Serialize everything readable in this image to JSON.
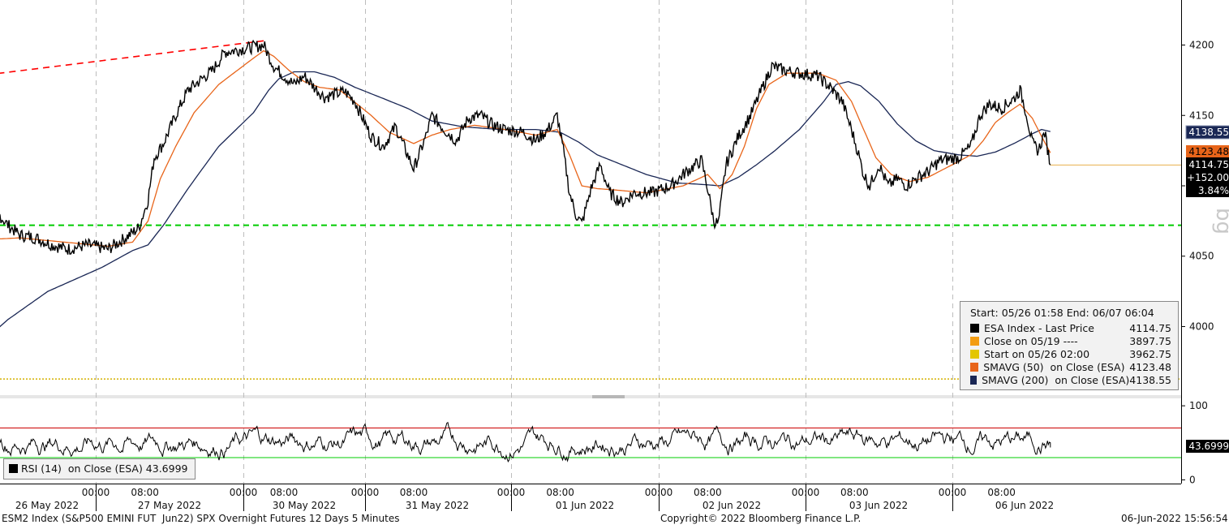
{
  "chart_data": [
    {
      "type": "line",
      "y_ticks": [
        4000,
        4050,
        4100,
        4150,
        4200
      ],
      "y_tick_labels": [
        "4000",
        "4050",
        "",
        "4150",
        "4200"
      ],
      "ylim": [
        3953,
        4232
      ],
      "x_axis": {
        "day_labels": [
          "26 May 2022",
          "27 May 2022",
          "30 May 2022",
          "31 May 2022",
          "01 Jun 2022",
          "02 Jun 2022",
          "03 Jun 2022",
          "06 Jun 2022"
        ],
        "hour_labels": [
          "08:00",
          "00:00",
          "08:00",
          "00:00",
          "08:00",
          "00:00",
          "08:00",
          "00:00",
          "08:00",
          "00:00",
          "08:00",
          "00:00",
          "08:00",
          "00:00",
          "08:00"
        ],
        "day_boundaries": [
          "27 May 2022 00:00",
          "30 May 2022 00:00",
          "31 May 2022 00:00",
          "01 Jun 2022 00:00",
          "02 Jun 2022 00:00",
          "03 Jun 2022 00:00",
          "06 Jun 2022 00:00"
        ]
      },
      "price_path": [
        [
          "05/26 01:58",
          3962
        ],
        [
          "05/26 04:00",
          3985
        ],
        [
          "05/26 06:00",
          4000
        ],
        [
          "05/26 07:30",
          4020
        ],
        [
          "05/26 08:30",
          4050
        ],
        [
          "05/26 10:00",
          4075
        ],
        [
          "05/26 11:30",
          4082
        ],
        [
          "05/26 13:00",
          4072
        ],
        [
          "05/26 14:30",
          4065
        ],
        [
          "05/26 16:30",
          4063
        ],
        [
          "05/26 18:30",
          4058
        ],
        [
          "05/26 20:30",
          4055
        ],
        [
          "05/26 23:00",
          4058
        ],
        [
          "05/27 02:00",
          4055
        ],
        [
          "05/27 04:30",
          4062
        ],
        [
          "05/27 07:00",
          4070
        ],
        [
          "05/27 08:30",
          4090
        ],
        [
          "05/27 09:30",
          4120
        ],
        [
          "05/27 11:00",
          4130
        ],
        [
          "05/27 13:00",
          4150
        ],
        [
          "05/27 15:00",
          4168
        ],
        [
          "05/27 17:00",
          4175
        ],
        [
          "05/27 19:00",
          4182
        ],
        [
          "05/27 21:00",
          4195
        ],
        [
          "05/30 01:00",
          4198
        ],
        [
          "05/30 04:00",
          4200
        ],
        [
          "05/30 06:00",
          4185
        ],
        [
          "05/30 08:00",
          4178
        ],
        [
          "05/30 10:00",
          4172
        ],
        [
          "05/30 12:00",
          4178
        ],
        [
          "05/30 14:00",
          4170
        ],
        [
          "05/30 16:00",
          4163
        ],
        [
          "05/30 18:00",
          4165
        ],
        [
          "05/30 20:00",
          4167
        ],
        [
          "05/30 22:00",
          4160
        ],
        [
          "05/31 01:00",
          4135
        ],
        [
          "05/31 03:00",
          4128
        ],
        [
          "05/31 05:00",
          4142
        ],
        [
          "05/31 07:00",
          4122
        ],
        [
          "05/31 08:00",
          4112
        ],
        [
          "05/31 10:00",
          4135
        ],
        [
          "05/31 11:00",
          4150
        ],
        [
          "05/31 13:00",
          4140
        ],
        [
          "05/31 15:00",
          4132
        ],
        [
          "05/31 17:00",
          4148
        ],
        [
          "05/31 19:00",
          4150
        ],
        [
          "05/31 21:00",
          4143
        ],
        [
          "05/31 23:00",
          4140
        ],
        [
          "06/01 02:00",
          4138
        ],
        [
          "06/01 04:00",
          4132
        ],
        [
          "06/01 06:00",
          4140
        ],
        [
          "06/01 07:30",
          4150
        ],
        [
          "06/01 08:30",
          4125
        ],
        [
          "06/01 09:30",
          4095
        ],
        [
          "06/01 10:30",
          4080
        ],
        [
          "06/01 11:30",
          4073
        ],
        [
          "06/01 13:00",
          4098
        ],
        [
          "06/01 14:30",
          4115
        ],
        [
          "06/01 16:00",
          4095
        ],
        [
          "06/01 18:00",
          4088
        ],
        [
          "06/01 20:00",
          4095
        ],
        [
          "06/01 23:00",
          4095
        ],
        [
          "06/02 02:00",
          4100
        ],
        [
          "06/02 04:30",
          4110
        ],
        [
          "06/02 07:00",
          4118
        ],
        [
          "06/02 08:00",
          4098
        ],
        [
          "06/02 09:00",
          4075
        ],
        [
          "06/02 09:45",
          4073
        ],
        [
          "06/02 11:00",
          4115
        ],
        [
          "06/02 13:00",
          4135
        ],
        [
          "06/02 15:00",
          4150
        ],
        [
          "06/02 16:30",
          4165
        ],
        [
          "06/02 18:30",
          4185
        ],
        [
          "06/02 20:30",
          4182
        ],
        [
          "06/02 23:00",
          4180
        ],
        [
          "06/03 02:00",
          4178
        ],
        [
          "06/03 04:00",
          4170
        ],
        [
          "06/03 06:00",
          4160
        ],
        [
          "06/03 07:30",
          4140
        ],
        [
          "06/03 08:30",
          4125
        ],
        [
          "06/03 09:30",
          4108
        ],
        [
          "06/03 10:30",
          4100
        ],
        [
          "06/03 12:00",
          4115
        ],
        [
          "06/03 13:30",
          4100
        ],
        [
          "06/03 15:00",
          4105
        ],
        [
          "06/03 16:30",
          4100
        ],
        [
          "06/03 18:00",
          4105
        ],
        [
          "06/03 20:00",
          4110
        ],
        [
          "06/03 22:00",
          4118
        ],
        [
          "06/06 01:00",
          4120
        ],
        [
          "06/06 03:00",
          4128
        ],
        [
          "06/06 04:30",
          4150
        ],
        [
          "06/06 06:00",
          4158
        ],
        [
          "06/06 08:00",
          4155
        ],
        [
          "06/06 10:00",
          4162
        ],
        [
          "06/06 11:00",
          4168
        ],
        [
          "06/06 12:00",
          4152
        ],
        [
          "06/06 13:00",
          4130
        ],
        [
          "06/06 14:00",
          4125
        ],
        [
          "06/06 15:00",
          4138
        ],
        [
          "06/06 15:56",
          4114.75
        ]
      ],
      "sma50_path": [
        [
          "05/26 01:58",
          3965
        ],
        [
          "05/26 06:00",
          3985
        ],
        [
          "05/26 08:30",
          4025
        ],
        [
          "05/26 11:00",
          4062
        ],
        [
          "05/26 14:30",
          4063
        ],
        [
          "05/26 20:00",
          4060
        ],
        [
          "05/27 02:00",
          4057
        ],
        [
          "05/27 06:00",
          4060
        ],
        [
          "05/27 08:30",
          4075
        ],
        [
          "05/27 10:30",
          4105
        ],
        [
          "05/27 13:00",
          4128
        ],
        [
          "05/27 16:00",
          4152
        ],
        [
          "05/27 20:00",
          4172
        ],
        [
          "05/30 01:00",
          4188
        ],
        [
          "05/30 04:00",
          4196
        ],
        [
          "05/30 06:00",
          4192
        ],
        [
          "05/30 09:00",
          4182
        ],
        [
          "05/30 12:00",
          4174
        ],
        [
          "05/30 15:00",
          4170
        ],
        [
          "05/30 19:00",
          4168
        ],
        [
          "05/31 01:00",
          4150
        ],
        [
          "05/31 04:00",
          4138
        ],
        [
          "05/31 08:00",
          4130
        ],
        [
          "05/31 11:00",
          4136
        ],
        [
          "05/31 14:00",
          4140
        ],
        [
          "05/31 18:00",
          4143
        ],
        [
          "05/31 23:00",
          4140
        ],
        [
          "06/01 04:00",
          4136
        ],
        [
          "06/01 07:30",
          4140
        ],
        [
          "06/01 09:30",
          4122
        ],
        [
          "06/01 11:30",
          4100
        ],
        [
          "06/01 14:00",
          4098
        ],
        [
          "06/01 17:00",
          4097
        ],
        [
          "06/01 22:00",
          4095
        ],
        [
          "06/02 04:00",
          4100
        ],
        [
          "06/02 08:00",
          4108
        ],
        [
          "06/02 10:00",
          4098
        ],
        [
          "06/02 12:00",
          4108
        ],
        [
          "06/02 14:00",
          4128
        ],
        [
          "06/02 16:00",
          4155
        ],
        [
          "06/02 18:00",
          4172
        ],
        [
          "06/02 21:00",
          4180
        ],
        [
          "06/03 02:00",
          4180
        ],
        [
          "06/03 05:00",
          4175
        ],
        [
          "06/03 07:30",
          4160
        ],
        [
          "06/03 09:30",
          4140
        ],
        [
          "06/03 11:30",
          4120
        ],
        [
          "06/03 14:00",
          4108
        ],
        [
          "06/03 17:00",
          4103
        ],
        [
          "06/03 20:00",
          4106
        ],
        [
          "06/06 00:00",
          4115
        ],
        [
          "06/06 03:00",
          4122
        ],
        [
          "06/06 05:00",
          4132
        ],
        [
          "06/06 07:00",
          4145
        ],
        [
          "06/06 09:00",
          4152
        ],
        [
          "06/06 11:00",
          4158
        ],
        [
          "06/06 13:00",
          4148
        ],
        [
          "06/06 14:30",
          4135
        ],
        [
          "06/06 15:56",
          4123.48
        ]
      ],
      "sma200_path": [
        [
          "05/26 01:58",
          3962
        ],
        [
          "05/26 06:00",
          3972
        ],
        [
          "05/26 09:00",
          3985
        ],
        [
          "05/26 13:00",
          4005
        ],
        [
          "05/26 18:00",
          4025
        ],
        [
          "05/27 01:00",
          4042
        ],
        [
          "05/27 06:00",
          4054
        ],
        [
          "05/27 08:30",
          4058
        ],
        [
          "05/27 11:00",
          4072
        ],
        [
          "05/27 15:00",
          4098
        ],
        [
          "05/27 20:00",
          4128
        ],
        [
          "05/30 02:00",
          4152
        ],
        [
          "05/30 05:00",
          4168
        ],
        [
          "05/30 07:00",
          4176
        ],
        [
          "05/30 10:00",
          4181
        ],
        [
          "05/30 14:00",
          4181
        ],
        [
          "05/30 18:00",
          4177
        ],
        [
          "05/30 22:00",
          4170
        ],
        [
          "05/31 03:00",
          4162
        ],
        [
          "05/31 07:00",
          4155
        ],
        [
          "05/31 11:00",
          4146
        ],
        [
          "05/31 16:00",
          4142
        ],
        [
          "05/31 22:00",
          4140
        ],
        [
          "06/01 04:00",
          4140
        ],
        [
          "06/01 08:00",
          4138
        ],
        [
          "06/01 11:00",
          4131
        ],
        [
          "06/01 14:00",
          4122
        ],
        [
          "06/01 18:00",
          4115
        ],
        [
          "06/01 22:00",
          4108
        ],
        [
          "06/02 03:00",
          4102
        ],
        [
          "06/02 07:00",
          4101
        ],
        [
          "06/02 10:00",
          4100
        ],
        [
          "06/02 13:00",
          4106
        ],
        [
          "06/02 16:00",
          4115
        ],
        [
          "06/02 19:00",
          4125
        ],
        [
          "06/02 23:00",
          4140
        ],
        [
          "06/03 03:00",
          4160
        ],
        [
          "06/03 05:00",
          4172
        ],
        [
          "06/03 07:00",
          4174
        ],
        [
          "06/03 09:00",
          4171
        ],
        [
          "06/03 12:00",
          4160
        ],
        [
          "06/03 15:00",
          4144
        ],
        [
          "06/03 18:00",
          4132
        ],
        [
          "06/03 21:00",
          4125
        ],
        [
          "06/06 01:00",
          4122
        ],
        [
          "06/06 04:00",
          4121
        ],
        [
          "06/06 07:00",
          4124
        ],
        [
          "06/06 10:00",
          4130
        ],
        [
          "06/06 13:00",
          4137
        ],
        [
          "06/06 14:30",
          4140
        ],
        [
          "06/06 15:56",
          4138.55
        ]
      ],
      "resistance_line": [
        [
          "05/30 04:00",
          4203
        ],
        [
          "06/07 06:04",
          4180
        ]
      ],
      "support_level": 4072,
      "start_level": 3962.75,
      "last_price": 4114.75,
      "price_labels": [
        {
          "text": "4138.55",
          "color": "#1a2755"
        },
        {
          "text": "4123.48",
          "color": "#e8651a"
        },
        {
          "text": "4114.75",
          "color": "#000000"
        },
        {
          "text": "+152.00",
          "color": "#000000"
        },
        {
          "text": "3.84%",
          "color": "#000000"
        }
      ],
      "colors": {
        "price": "#000000",
        "sma50": "#e8651a",
        "sma200": "#1a2755",
        "resistance": "#ff0000",
        "support": "#00cc00",
        "start": "#d4b000"
      },
      "grid": true,
      "legend": {
        "placement": "bottom-right",
        "header": "Start: 05/26 01:58 End: 06/07 06:04",
        "entries": [
          {
            "color": "#000000",
            "label": "ESA Index - Last Price",
            "value": "4114.75"
          },
          {
            "color": "#f39c12",
            "label": "Close on 05/19 ----",
            "value": "3897.75"
          },
          {
            "color": "#e3c600",
            "label": "Start on 05/26 02:00",
            "value": "3962.75"
          },
          {
            "color": "#e8651a",
            "label": "SMAVG (50)  on Close (ESA)",
            "value": "4123.48"
          },
          {
            "color": "#1a2755",
            "label": "SMAVG (200)  on Close (ESA)",
            "value": "4138.55"
          }
        ]
      }
    },
    {
      "type": "line",
      "name": "RSI (14)  on Close (ESA)",
      "y_ticks": [
        0,
        100
      ],
      "ylim": [
        -5,
        110
      ],
      "overbought": 70,
      "oversold": 30,
      "last_value": "43.6999",
      "legend_text": "RSI (14)  on Close (ESA) 43.6999",
      "colors": {
        "rsi": "#000000",
        "overbought": "#cc0000",
        "oversold": "#00cc00"
      }
    }
  ],
  "footer": {
    "left": "ESM2 Index (S&P500 EMINI FUT  Jun22) SPX Overnight Futures 12 Days 5 Minutes",
    "center": "Copyright© 2022 Bloomberg Finance L.P.",
    "right": "06-Jun-2022 15:56:54"
  },
  "watermark": "bg"
}
